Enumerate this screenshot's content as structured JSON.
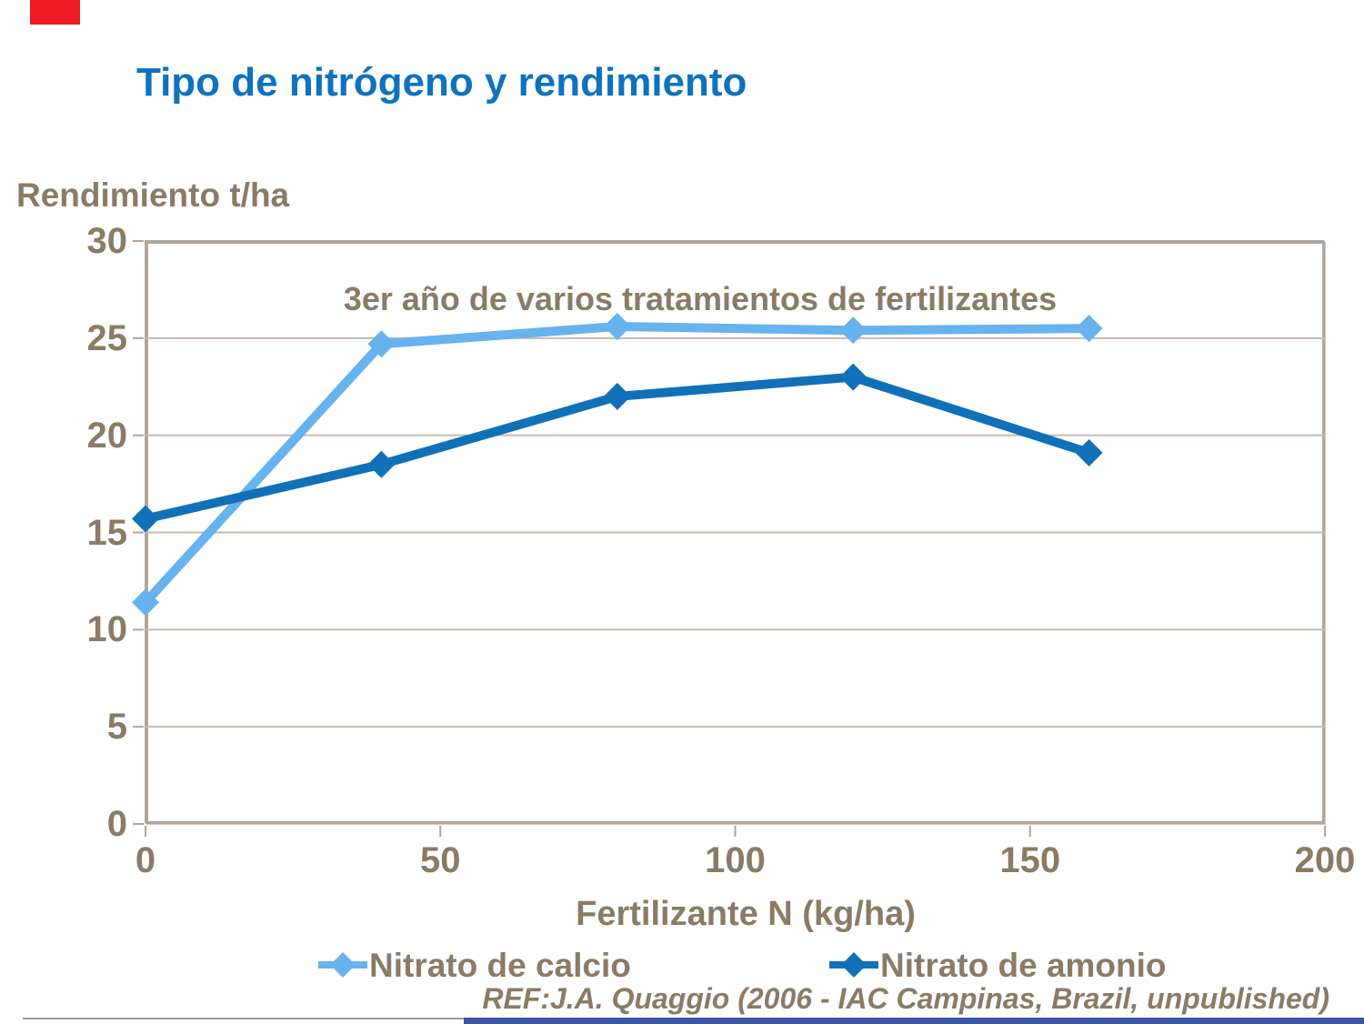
{
  "slide": {
    "title": "Tipo de nitrógeno y rendimiento",
    "ref_text": "REF:J.A. Quaggio (2006 - IAC Campinas, Brazil, unpublished)",
    "colors": {
      "title_blue": "#0e72c0",
      "text_brown": "#8b7b66",
      "red_accent_bar": "#ee1b24",
      "bottom_blue_bar": "#3a53a4",
      "plot_frame": "#b3a496",
      "gridline": "#c6baad"
    }
  },
  "chart_data": {
    "type": "line",
    "title_annotation": "3er año de varios tratamientos de fertilizantes",
    "ylabel": "Rendimiento t/ha",
    "xlabel": "Fertilizante N (kg/ha)",
    "x": [
      0,
      40,
      80,
      120,
      160
    ],
    "series": [
      {
        "name": "Nitrato de calcio",
        "color": "#67b3ee",
        "values": [
          11.4,
          24.7,
          25.6,
          25.4,
          25.5
        ]
      },
      {
        "name": "Nitrato de amonio",
        "color": "#1071b8",
        "values": [
          15.7,
          18.5,
          22.0,
          23.0,
          19.1
        ]
      }
    ],
    "xlim": [
      0,
      200
    ],
    "ylim": [
      0,
      30
    ],
    "x_ticks": [
      0,
      50,
      100,
      150,
      200
    ],
    "y_ticks": [
      0,
      5,
      10,
      15,
      20,
      25,
      30
    ],
    "grid": "horizontal",
    "marker": "diamond",
    "legend_position": "bottom"
  }
}
